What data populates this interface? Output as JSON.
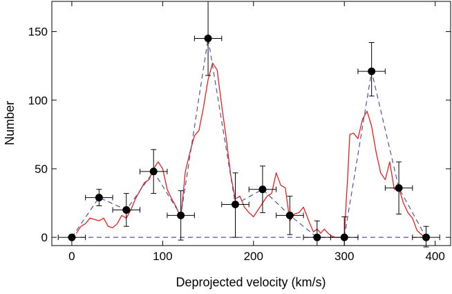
{
  "chart_data": {
    "type": "scatter",
    "title": "",
    "xlabel": "Deprojected velocity (km/s)",
    "ylabel": "Number",
    "xlim": [
      -22,
      417
    ],
    "ylim": [
      -6,
      172
    ],
    "x_ticks": [
      0,
      100,
      200,
      300,
      400
    ],
    "y_ticks": [
      0,
      50,
      100,
      150
    ],
    "grid": false,
    "legend": "none",
    "colors": {
      "points": "#000000",
      "dashed_line": "#4f4fa8",
      "smooth_curve": "#e81e1e",
      "axes": "#000000"
    },
    "series": [
      {
        "kind": "points-with-errorbars",
        "x": [
          0,
          30,
          60,
          90,
          120,
          150,
          180,
          210,
          240,
          270,
          300,
          330,
          360,
          390
        ],
        "y": [
          0,
          29,
          20,
          48,
          16,
          145,
          24,
          35,
          16,
          0,
          0,
          121,
          36,
          0
        ],
        "x_err": [
          15,
          15,
          15,
          15,
          15,
          15,
          15,
          15,
          15,
          15,
          15,
          15,
          15,
          15
        ],
        "y_err_low": [
          0,
          6,
          12,
          16,
          18,
          27,
          24,
          17,
          14,
          6,
          6,
          18,
          19,
          7
        ],
        "y_err_high": [
          0,
          6,
          12,
          16,
          18,
          27,
          23,
          17,
          14,
          12,
          15,
          21,
          19,
          8
        ]
      },
      {
        "kind": "dashed-line",
        "x": [
          0,
          30,
          60,
          90,
          120,
          150,
          180,
          210,
          240,
          270,
          300,
          330,
          360,
          390
        ],
        "y": [
          0,
          29,
          20,
          48,
          16,
          145,
          24,
          35,
          16,
          0,
          0,
          121,
          36,
          0
        ]
      },
      {
        "kind": "smooth-curve",
        "x": [
          5,
          10,
          15,
          20,
          25,
          30,
          35,
          40,
          45,
          50,
          55,
          60,
          65,
          70,
          75,
          80,
          85,
          90,
          95,
          100,
          105,
          110,
          115,
          120,
          125,
          130,
          135,
          140,
          145,
          150,
          155,
          160,
          165,
          170,
          175,
          180,
          185,
          190,
          195,
          200,
          205,
          210,
          215,
          220,
          225,
          230,
          235,
          240,
          245,
          250,
          255,
          258,
          262,
          266,
          270,
          274,
          278,
          282,
          286,
          290,
          294,
          298,
          300,
          302,
          304,
          306,
          310,
          315,
          320,
          325,
          330,
          335,
          340,
          345,
          350,
          355,
          360,
          365,
          370,
          375,
          380,
          385,
          388
        ],
        "y": [
          3,
          8,
          10,
          14,
          13,
          12,
          14,
          8,
          7,
          10,
          16,
          14,
          20,
          28,
          34,
          40,
          42,
          50,
          55,
          50,
          35,
          28,
          22,
          14,
          48,
          62,
          74,
          78,
          95,
          115,
          127,
          122,
          96,
          72,
          45,
          28,
          30,
          22,
          18,
          15,
          20,
          25,
          30,
          32,
          47,
          38,
          36,
          12,
          17,
          18,
          22,
          17,
          10,
          4,
          6,
          3,
          6,
          3,
          1,
          0,
          0,
          0,
          0,
          25,
          48,
          75,
          76,
          72,
          86,
          92,
          81,
          62,
          47,
          42,
          55,
          35,
          36,
          25,
          18,
          14,
          5,
          2,
          0
        ]
      }
    ]
  }
}
